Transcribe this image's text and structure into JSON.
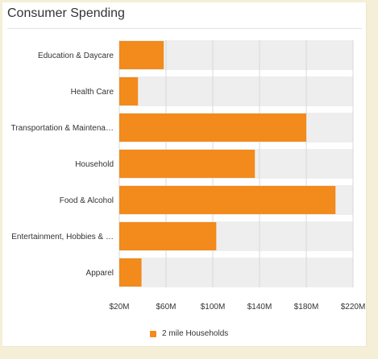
{
  "title": "Consumer Spending",
  "chart_data": {
    "type": "bar",
    "orientation": "horizontal",
    "categories": [
      "Education & Daycare",
      "Health Care",
      "Transportation & Maintena…",
      "Household",
      "Food & Alcohol",
      "Entertainment, Hobbies & …",
      "Apparel"
    ],
    "series": [
      {
        "name": "2 mile Households",
        "values": [
          58,
          36,
          180,
          136,
          205,
          103,
          39
        ]
      }
    ],
    "x_ticks": [
      "$20M",
      "$60M",
      "$100M",
      "$140M",
      "$180M",
      "$220M"
    ],
    "xlim": [
      20,
      220
    ],
    "grid": true,
    "legend_position": "bottom",
    "colors": {
      "bar": "#f28a1c",
      "band": "#eeeeee",
      "gridline": "#d8d8d8"
    }
  }
}
